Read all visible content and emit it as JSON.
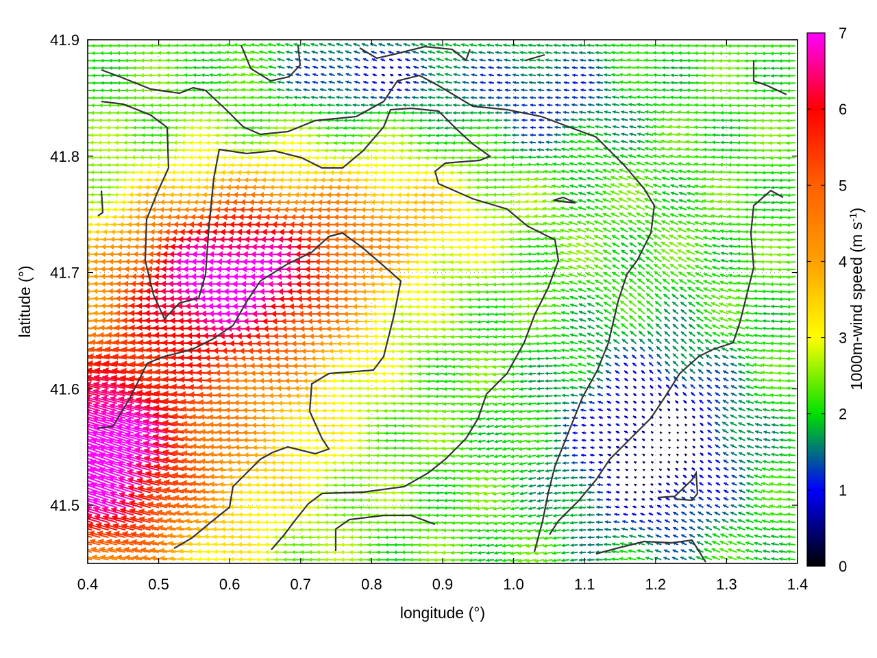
{
  "chart_data": {
    "type": "vector-field",
    "title": "",
    "xlabel": "longitude (°)",
    "ylabel": "latitude (°)",
    "xlim": [
      0.4,
      1.4
    ],
    "ylim": [
      41.45,
      41.9
    ],
    "x_ticks": [
      0.4,
      0.5,
      0.6,
      0.7,
      0.8,
      0.9,
      1.0,
      1.1,
      1.2,
      1.3,
      1.4
    ],
    "x_tick_labels": [
      "0.4",
      "0.5",
      "0.6",
      "0.7",
      "0.8",
      "0.9",
      "1.0",
      "1.1",
      "1.2",
      "1.3",
      "1.4"
    ],
    "y_ticks": [
      41.5,
      41.6,
      41.7,
      41.8,
      41.9
    ],
    "y_tick_labels": [
      "41.5",
      "41.6",
      "41.7",
      "41.8",
      "41.9"
    ],
    "grid": true,
    "colorbar": {
      "label_main": "1000m-wind speed (m s",
      "label_sup": "-1",
      "label_close": ")",
      "min": 0,
      "max": 7,
      "ticks": [
        0,
        1,
        2,
        3,
        4,
        5,
        6,
        7
      ],
      "tick_labels": [
        "0",
        "1",
        "2",
        "3",
        "4",
        "5",
        "6",
        "7"
      ],
      "colors": [
        "#000000",
        "#0000ff",
        "#00e000",
        "#ffff00",
        "#ffa000",
        "#ff6000",
        "#ff0000",
        "#ff00ff"
      ],
      "placement": "right"
    },
    "field_description": {
      "strong_core": {
        "lon": 0.64,
        "lat": 41.7,
        "speed": 6.5,
        "direction": "westward"
      },
      "southwest_corner": {
        "lon": 0.42,
        "lat": 41.53,
        "speed": 6.8,
        "direction": "southwestward"
      },
      "east_calm_region": {
        "lon": 1.2,
        "lat": 41.55,
        "speed": 0.5
      },
      "north_calm_region": {
        "lon": 0.8,
        "lat": 41.87,
        "speed": 1.0
      }
    },
    "contour_color": "#333333"
  }
}
